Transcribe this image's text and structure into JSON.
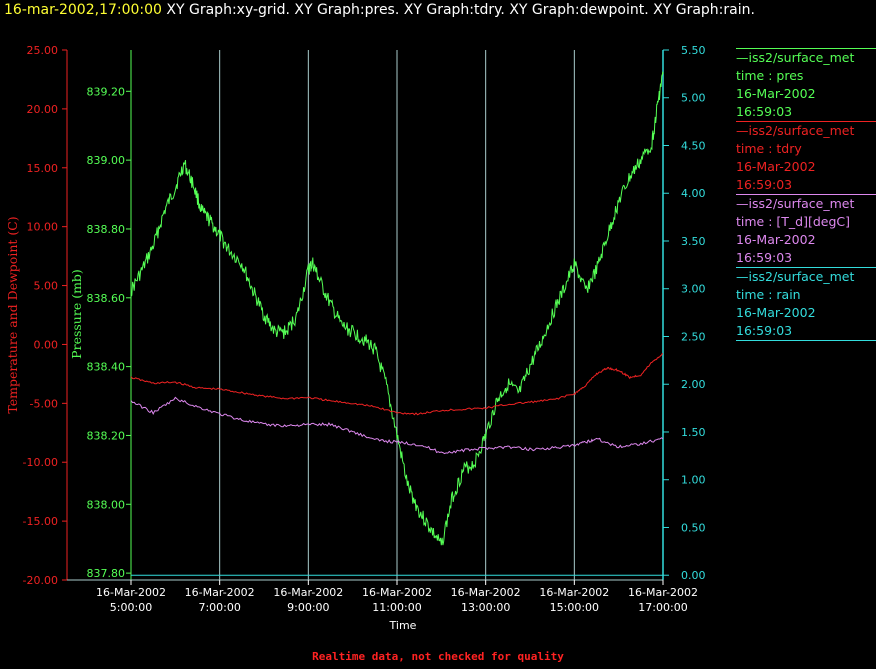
{
  "title": {
    "timestamp": "16-mar-2002,17:00:00",
    "graphs": "XY Graph:xy-grid.  XY Graph:pres.  XY Graph:tdry.  XY Graph:dewpoint.  XY Graph:rain."
  },
  "footer": "Realtime data, not checked for quality",
  "colors": {
    "background": "#000000",
    "pres": "#55ff55",
    "tdry": "#ee2222",
    "dewpoint": "#dd88ee",
    "rain": "#33dddd",
    "grid": "#aacccc",
    "title_time": "#ffff33",
    "footer": "#ff2222"
  },
  "legend": [
    {
      "line": "—iss2/surface_met",
      "var": "time : pres",
      "date": "16-Mar-2002",
      "time": "16:59:03",
      "color": "#55ff55"
    },
    {
      "line": "—iss2/surface_met",
      "var": "time : tdry",
      "date": "16-Mar-2002",
      "time": "16:59:03",
      "color": "#ee2222"
    },
    {
      "line": "—iss2/surface_met",
      "var": "time : [T_d][degC]",
      "date": "16-Mar-2002",
      "time": "16:59:03",
      "color": "#dd88ee"
    },
    {
      "line": "—iss2/surface_met",
      "var": "time : rain",
      "date": "16-Mar-2002",
      "time": "16:59:03",
      "color": "#33dddd"
    }
  ],
  "chart_data": {
    "type": "line",
    "xlabel": "Time",
    "xlim": [
      5,
      17
    ],
    "x_ticks": [
      {
        "date": "16-Mar-2002",
        "time": "5:00:00"
      },
      {
        "date": "16-Mar-2002",
        "time": "7:00:00"
      },
      {
        "date": "16-Mar-2002",
        "time": "9:00:00"
      },
      {
        "date": "16-Mar-2002",
        "time": "11:00:00"
      },
      {
        "date": "16-Mar-2002",
        "time": "13:00:00"
      },
      {
        "date": "16-Mar-2002",
        "time": "15:00:00"
      },
      {
        "date": "16-Mar-2002",
        "time": "17:00:00"
      }
    ],
    "left_axis": {
      "label": "Temperature and Dewpoint (C)",
      "ylim": [
        -20,
        25
      ],
      "ticks": [
        "25.00",
        "20.00",
        "15.00",
        "10.00",
        "5.00",
        "0.00",
        "-5.00",
        "-10.00",
        "-15.00",
        "-20.00"
      ]
    },
    "pres_axis": {
      "label": "Pressure (mb)",
      "ylim": [
        837.78,
        839.32
      ],
      "ticks": [
        "839.20",
        "839.00",
        "838.80",
        "838.60",
        "838.40",
        "838.20",
        "838.00",
        "837.80"
      ]
    },
    "right_axis": {
      "label": "",
      "ylim": [
        -0.05,
        5.5
      ],
      "ticks": [
        "5.50",
        "5.00",
        "4.50",
        "4.00",
        "3.50",
        "3.00",
        "2.50",
        "2.00",
        "1.50",
        "1.00",
        "0.50",
        "0.00"
      ]
    },
    "series": [
      {
        "name": "pres",
        "axis": "pres",
        "x": [
          5.0,
          5.25,
          5.5,
          5.75,
          6.0,
          6.2,
          6.4,
          6.6,
          6.8,
          7.0,
          7.2,
          7.5,
          7.75,
          8.0,
          8.25,
          8.5,
          8.75,
          9.0,
          9.1,
          9.25,
          9.5,
          9.75,
          10.0,
          10.25,
          10.5,
          10.75,
          11.0,
          11.25,
          11.5,
          11.75,
          12.0,
          12.25,
          12.5,
          12.75,
          13.0,
          13.25,
          13.5,
          13.75,
          14.0,
          14.25,
          14.5,
          14.75,
          15.0,
          15.25,
          15.5,
          15.75,
          16.0,
          16.25,
          16.5,
          16.75,
          16.9,
          17.0
        ],
        "y": [
          838.62,
          838.68,
          838.75,
          838.85,
          838.92,
          838.99,
          838.93,
          838.85,
          838.82,
          838.78,
          838.74,
          838.7,
          838.62,
          838.55,
          838.5,
          838.5,
          838.55,
          838.68,
          838.7,
          838.65,
          838.58,
          838.52,
          838.5,
          838.48,
          838.45,
          838.35,
          838.2,
          838.05,
          837.98,
          837.93,
          837.88,
          838.02,
          838.1,
          838.12,
          838.2,
          838.3,
          838.35,
          838.32,
          838.4,
          838.47,
          838.55,
          838.62,
          838.7,
          838.62,
          838.68,
          838.78,
          838.88,
          838.95,
          839.0,
          839.05,
          839.18,
          839.25
        ]
      },
      {
        "name": "tdry",
        "axis": "left",
        "x": [
          5.0,
          5.5,
          6.0,
          6.5,
          7.0,
          7.5,
          8.0,
          8.5,
          9.0,
          9.5,
          10.0,
          10.5,
          11.0,
          11.5,
          12.0,
          12.5,
          13.0,
          13.5,
          14.0,
          14.5,
          15.0,
          15.25,
          15.5,
          15.75,
          16.0,
          16.25,
          16.5,
          16.75,
          17.0
        ],
        "y": [
          -2.8,
          -3.3,
          -3.2,
          -3.7,
          -3.8,
          -4.1,
          -4.4,
          -4.6,
          -4.5,
          -4.8,
          -5.0,
          -5.3,
          -5.8,
          -5.9,
          -5.6,
          -5.5,
          -5.4,
          -5.1,
          -4.9,
          -4.7,
          -4.2,
          -3.5,
          -2.5,
          -2.0,
          -2.2,
          -2.8,
          -2.6,
          -1.5,
          -0.8
        ]
      },
      {
        "name": "dewpoint",
        "axis": "left",
        "x": [
          5.0,
          5.5,
          6.0,
          6.5,
          7.0,
          7.5,
          8.0,
          8.5,
          9.0,
          9.5,
          10.0,
          10.5,
          11.0,
          11.5,
          12.0,
          12.5,
          13.0,
          13.5,
          14.0,
          14.5,
          15.0,
          15.25,
          15.5,
          16.0,
          16.5,
          17.0
        ],
        "y": [
          -4.8,
          -5.8,
          -4.6,
          -5.3,
          -5.9,
          -6.4,
          -6.8,
          -6.9,
          -6.8,
          -6.8,
          -7.4,
          -8.1,
          -8.3,
          -8.5,
          -9.2,
          -9.0,
          -8.8,
          -8.7,
          -8.9,
          -8.8,
          -8.6,
          -8.3,
          -8.0,
          -8.7,
          -8.4,
          -8.0
        ]
      },
      {
        "name": "rain",
        "axis": "right",
        "x": [
          5.0,
          17.0
        ],
        "y": [
          0.0,
          0.0
        ]
      }
    ]
  }
}
